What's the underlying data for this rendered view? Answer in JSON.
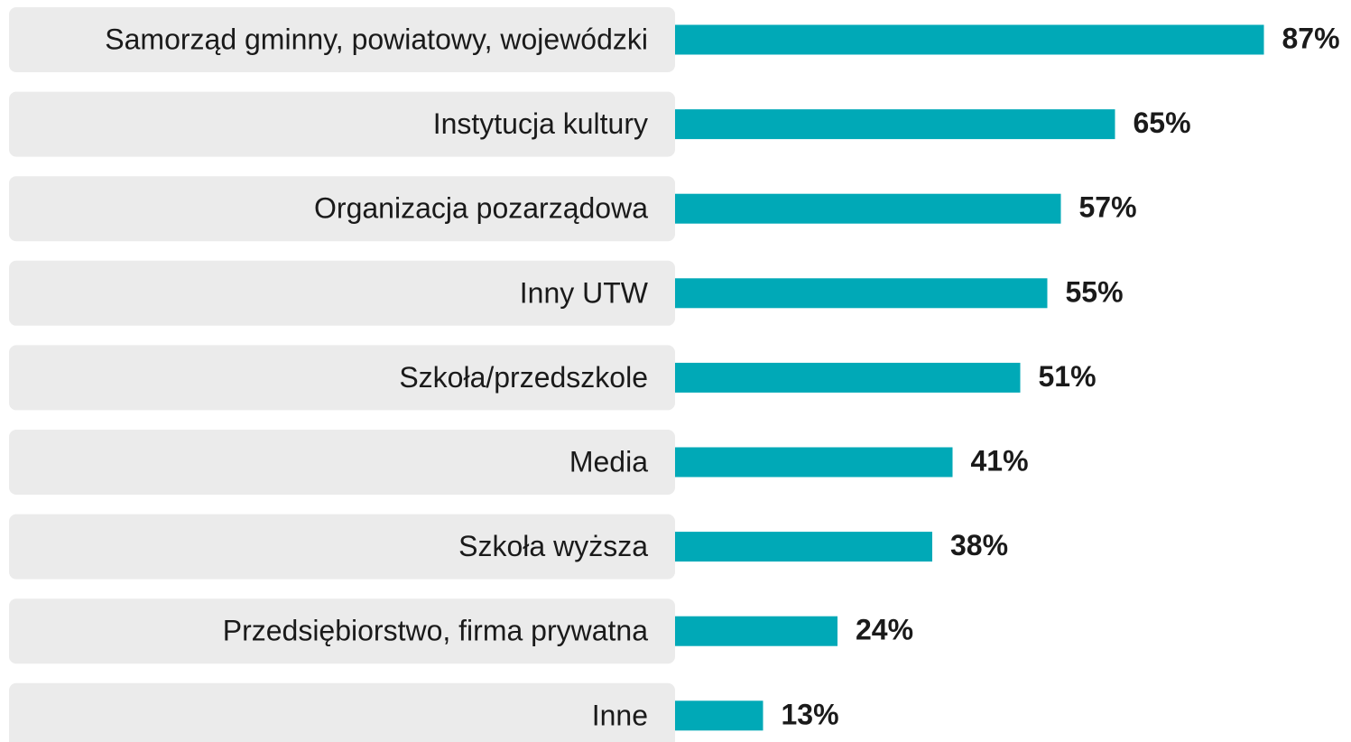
{
  "chart_data": {
    "type": "bar",
    "orientation": "horizontal",
    "categories": [
      "Samorząd gminny, powiatowy, wojewódzki",
      "Instytucja kultury",
      "Organizacja pozarządowa",
      "Inny UTW",
      "Szkoła/przedszkole",
      "Media",
      "Szkoła wyższa",
      "Przedsiębiorstwo, firma prywatna",
      "Inne"
    ],
    "values": [
      87,
      65,
      57,
      55,
      51,
      41,
      38,
      24,
      13
    ],
    "value_labels": [
      "87%",
      "65%",
      "57%",
      "55%",
      "51%",
      "41%",
      "38%",
      "24%",
      "13%"
    ],
    "color": "#00a9b7"
  }
}
